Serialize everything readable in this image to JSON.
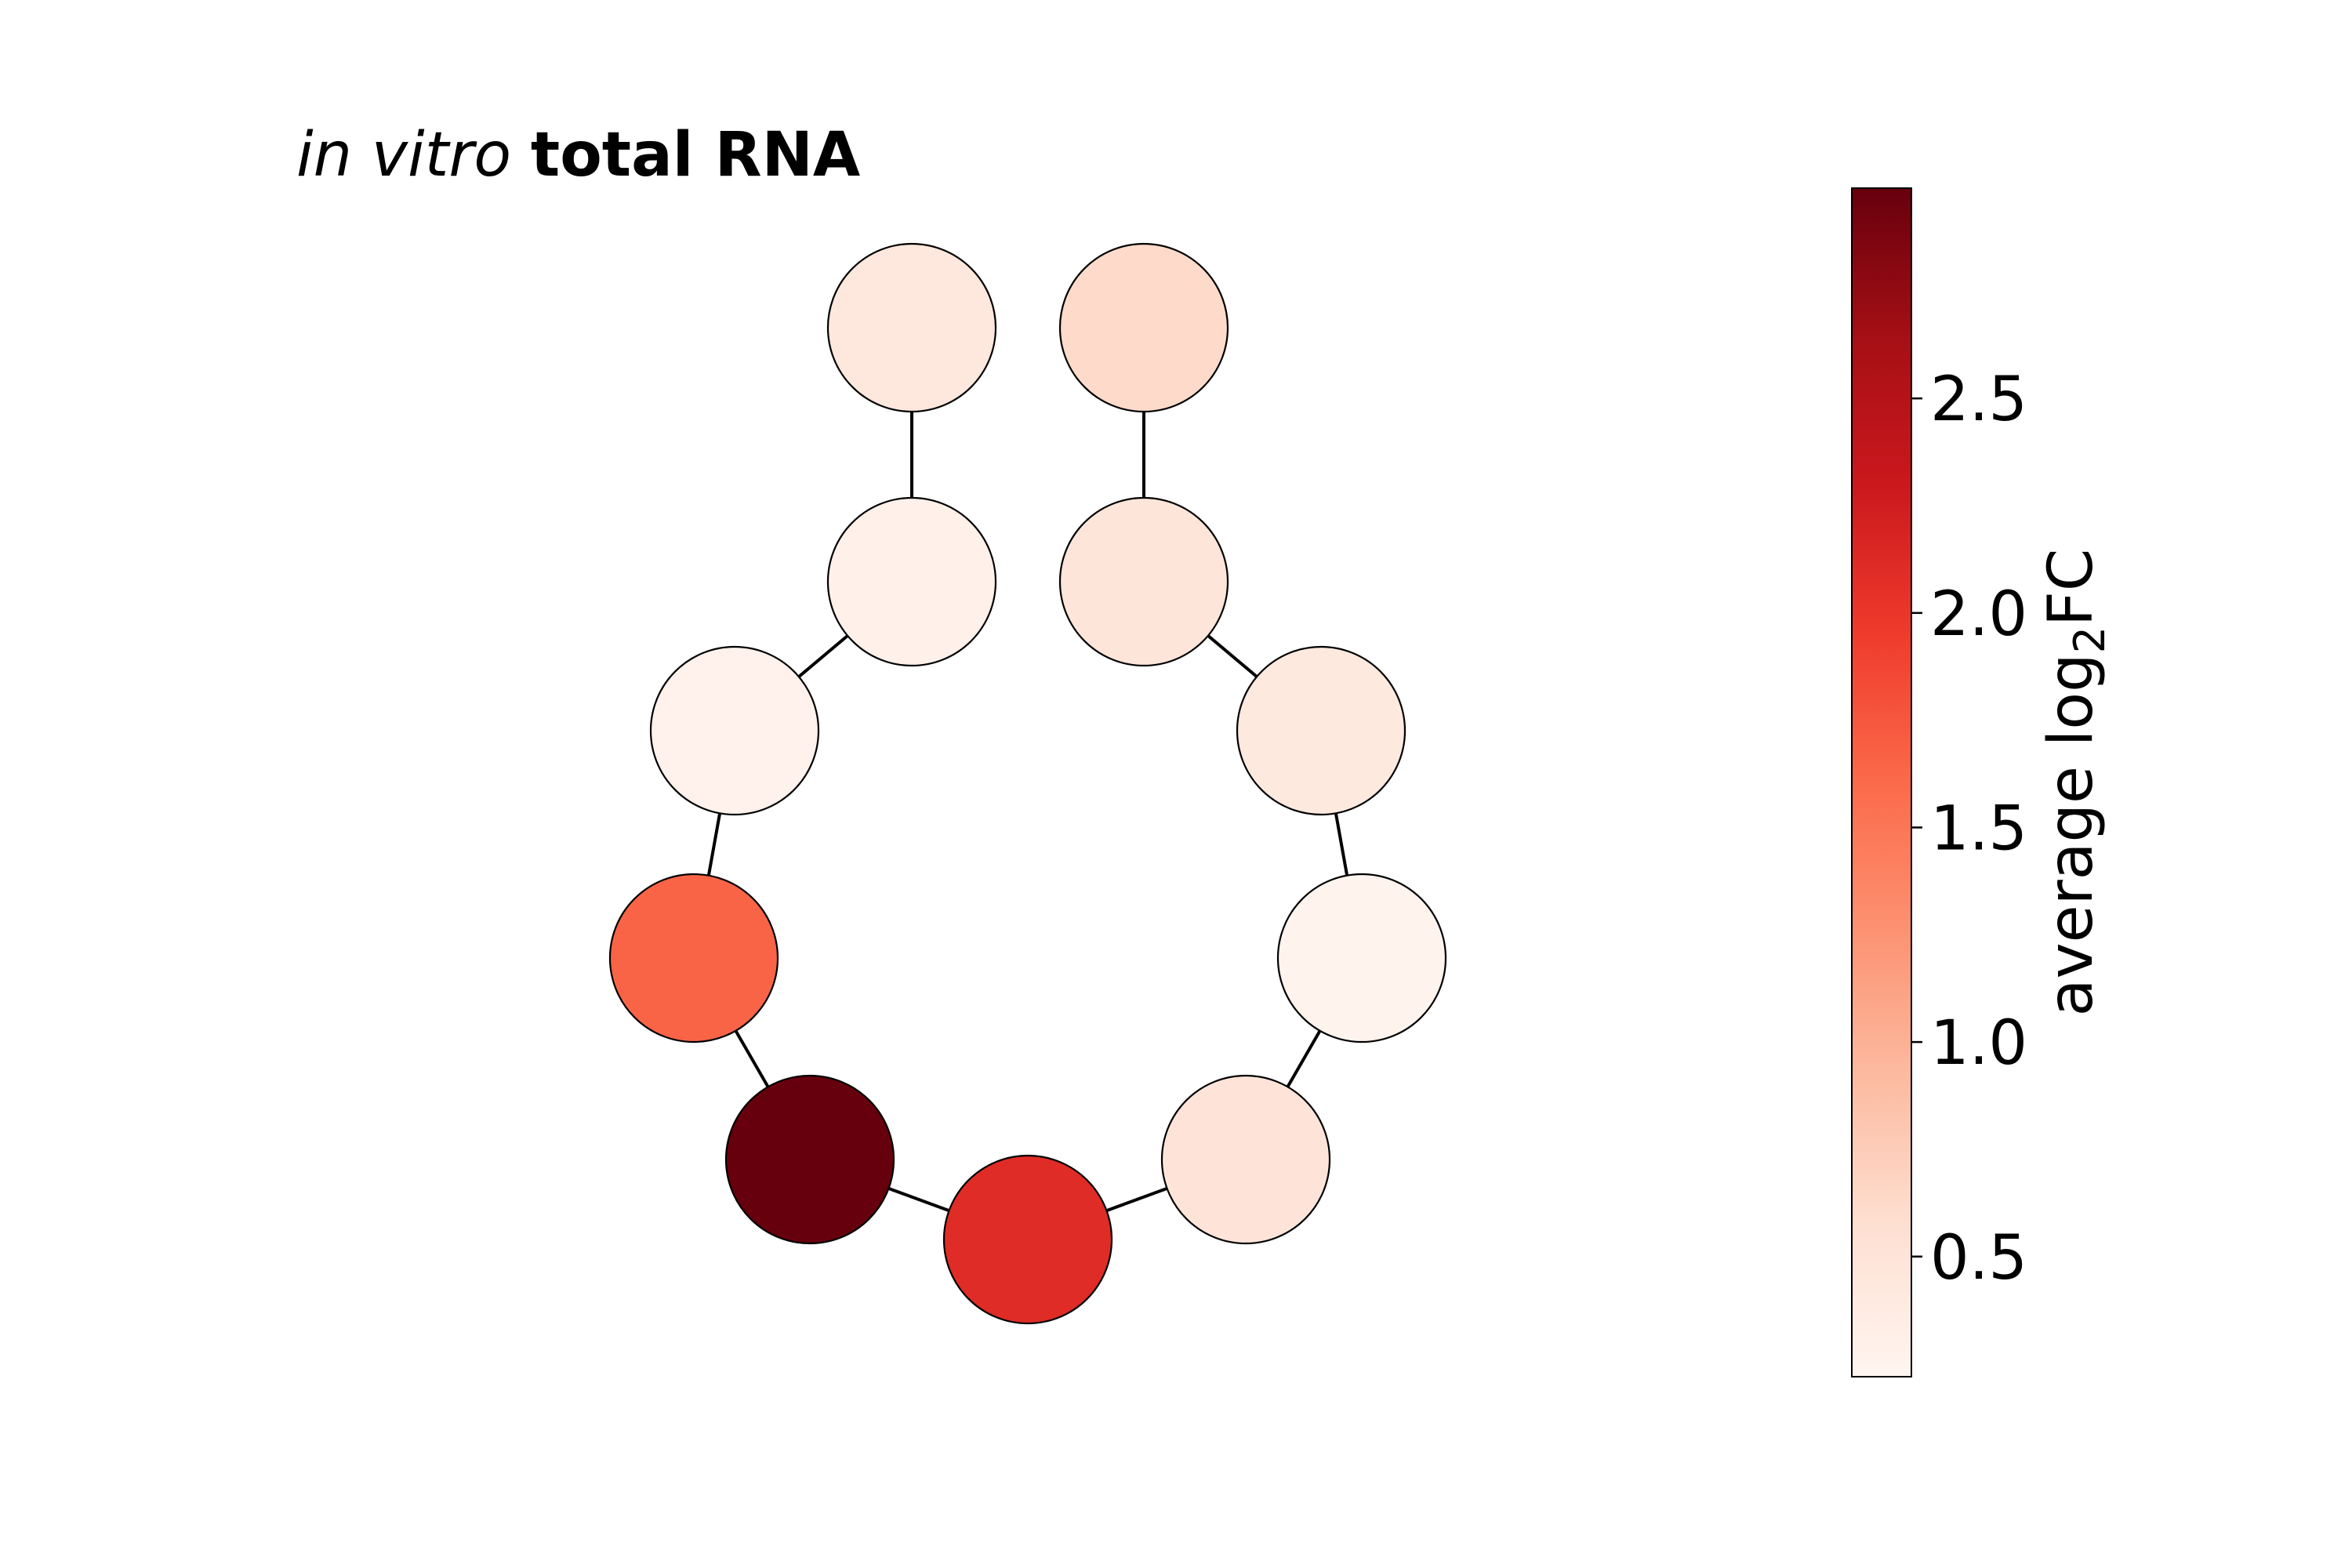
{
  "title": {
    "italic": "in vitro",
    "bold": "total RNA"
  },
  "colorbar": {
    "label_main": "average log",
    "label_sub": "2",
    "label_end": "FC",
    "range": [
      0.22,
      2.99
    ],
    "ticks": [
      0.5,
      1.0,
      1.5,
      2.0,
      2.5
    ],
    "tick_labels": [
      "0.5",
      "1.0",
      "1.5",
      "2.0",
      "2.5"
    ],
    "colormap": "Reds",
    "stops": [
      "#fff5f0",
      "#fee0d2",
      "#fcbba1",
      "#fc9272",
      "#fb6a4a",
      "#ef3b2c",
      "#cb181d",
      "#a50f15",
      "#67000d"
    ]
  },
  "chart_data": {
    "type": "network",
    "nodes": [
      {
        "id": "n1",
        "value": 0.45
      },
      {
        "id": "n2",
        "value": 0.3
      },
      {
        "id": "n3",
        "value": 0.28
      },
      {
        "id": "n4",
        "value": 1.65
      },
      {
        "id": "n5",
        "value": 2.99
      },
      {
        "id": "n6",
        "value": 2.1
      },
      {
        "id": "n7",
        "value": 0.5
      },
      {
        "id": "n8",
        "value": 0.26
      },
      {
        "id": "n9",
        "value": 0.42
      },
      {
        "id": "n10",
        "value": 0.48
      },
      {
        "id": "n11",
        "value": 0.62
      }
    ],
    "edges": [
      [
        "n1",
        "n2"
      ],
      [
        "n2",
        "n3"
      ],
      [
        "n3",
        "n4"
      ],
      [
        "n4",
        "n5"
      ],
      [
        "n5",
        "n6"
      ],
      [
        "n6",
        "n7"
      ],
      [
        "n7",
        "n8"
      ],
      [
        "n8",
        "n9"
      ],
      [
        "n9",
        "n10"
      ],
      [
        "n10",
        "n11"
      ]
    ]
  }
}
